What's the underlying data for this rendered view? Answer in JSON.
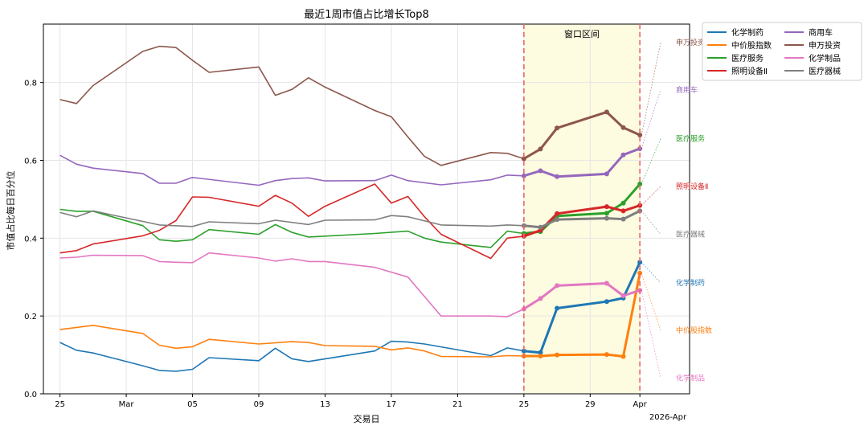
{
  "chart_data": {
    "type": "line",
    "title": "最近1周市值占比增长Top8",
    "xlabel": "交易日",
    "ylabel": "市值占比每日百分位",
    "x_axis_year_label": "2026-Apr",
    "ylim": [
      0,
      0.95
    ],
    "yticks": [
      0.0,
      0.2,
      0.4,
      0.6,
      0.8
    ],
    "ytick_labels": [
      "0.0",
      "0.2",
      "0.4",
      "0.6",
      "0.8"
    ],
    "xlim": [
      "2026-02-24",
      "2026-04-04"
    ],
    "xticks": [
      "2026-02-25",
      "2026-03-01",
      "2026-03-05",
      "2026-03-09",
      "2026-03-13",
      "2026-03-17",
      "2026-03-21",
      "2026-03-25",
      "2026-03-29",
      "2026-04-01"
    ],
    "xtick_labels": [
      "25",
      "Mar",
      "05",
      "09",
      "13",
      "17",
      "21",
      "25",
      "29",
      "Apr"
    ],
    "grid": true,
    "legend_position": "outside top-right",
    "window": {
      "label": "窗口区间",
      "start": "2026-03-25",
      "end": "2026-04-01",
      "fill": "#fdfbe0",
      "line_color": "#ee6666"
    },
    "series": [
      {
        "name": "化学制药",
        "color": "#1f77b4",
        "label_value": 0.285,
        "points": [
          [
            "2026-02-25",
            0.132
          ],
          [
            "2026-02-26",
            0.112
          ],
          [
            "2026-02-27",
            0.105
          ],
          [
            "2026-03-02",
            0.072
          ],
          [
            "2026-03-03",
            0.06
          ],
          [
            "2026-03-04",
            0.058
          ],
          [
            "2026-03-05",
            0.063
          ],
          [
            "2026-03-06",
            0.093
          ],
          [
            "2026-03-09",
            0.085
          ],
          [
            "2026-03-10",
            0.117
          ],
          [
            "2026-03-11",
            0.09
          ],
          [
            "2026-03-12",
            0.083
          ],
          [
            "2026-03-16",
            0.11
          ],
          [
            "2026-03-17",
            0.135
          ],
          [
            "2026-03-18",
            0.133
          ],
          [
            "2026-03-19",
            0.128
          ],
          [
            "2026-03-23",
            0.098
          ],
          [
            "2026-03-24",
            0.118
          ],
          [
            "2026-03-25",
            0.11
          ],
          [
            "2026-03-26",
            0.106
          ],
          [
            "2026-03-27",
            0.22
          ],
          [
            "2026-03-30",
            0.237
          ],
          [
            "2026-03-31",
            0.246
          ],
          [
            "2026-04-01",
            0.338
          ]
        ]
      },
      {
        "name": "中价股指数",
        "color": "#ff7f0e",
        "label_value": 0.163,
        "points": [
          [
            "2026-02-25",
            0.165
          ],
          [
            "2026-02-27",
            0.176
          ],
          [
            "2026-03-02",
            0.155
          ],
          [
            "2026-03-03",
            0.125
          ],
          [
            "2026-03-04",
            0.117
          ],
          [
            "2026-03-05",
            0.121
          ],
          [
            "2026-03-06",
            0.14
          ],
          [
            "2026-03-09",
            0.128
          ],
          [
            "2026-03-11",
            0.134
          ],
          [
            "2026-03-12",
            0.132
          ],
          [
            "2026-03-13",
            0.124
          ],
          [
            "2026-03-16",
            0.122
          ],
          [
            "2026-03-17",
            0.113
          ],
          [
            "2026-03-18",
            0.118
          ],
          [
            "2026-03-19",
            0.11
          ],
          [
            "2026-03-20",
            0.096
          ],
          [
            "2026-03-23",
            0.095
          ],
          [
            "2026-03-24",
            0.098
          ],
          [
            "2026-03-25",
            0.097
          ],
          [
            "2026-03-26",
            0.097
          ],
          [
            "2026-03-27",
            0.1
          ],
          [
            "2026-03-30",
            0.101
          ],
          [
            "2026-03-31",
            0.096
          ],
          [
            "2026-04-01",
            0.31
          ]
        ]
      },
      {
        "name": "医疗服务",
        "color": "#2ca02c",
        "label_value": 0.656,
        "points": [
          [
            "2026-02-25",
            0.474
          ],
          [
            "2026-02-26",
            0.469
          ],
          [
            "2026-02-27",
            0.469
          ],
          [
            "2026-03-02",
            0.432
          ],
          [
            "2026-03-03",
            0.396
          ],
          [
            "2026-03-04",
            0.392
          ],
          [
            "2026-03-05",
            0.396
          ],
          [
            "2026-03-06",
            0.422
          ],
          [
            "2026-03-09",
            0.41
          ],
          [
            "2026-03-10",
            0.435
          ],
          [
            "2026-03-11",
            0.415
          ],
          [
            "2026-03-12",
            0.403
          ],
          [
            "2026-03-16",
            0.412
          ],
          [
            "2026-03-18",
            0.418
          ],
          [
            "2026-03-19",
            0.4
          ],
          [
            "2026-03-20",
            0.39
          ],
          [
            "2026-03-23",
            0.376
          ],
          [
            "2026-03-24",
            0.418
          ],
          [
            "2026-03-25",
            0.412
          ],
          [
            "2026-03-26",
            0.417
          ],
          [
            "2026-03-27",
            0.457
          ],
          [
            "2026-03-30",
            0.464
          ],
          [
            "2026-03-31",
            0.49
          ],
          [
            "2026-04-01",
            0.539
          ]
        ]
      },
      {
        "name": "照明设备Ⅱ",
        "color": "#d62728",
        "label_value": 0.533,
        "points": [
          [
            "2026-02-25",
            0.362
          ],
          [
            "2026-02-26",
            0.368
          ],
          [
            "2026-02-27",
            0.385
          ],
          [
            "2026-03-02",
            0.406
          ],
          [
            "2026-03-03",
            0.42
          ],
          [
            "2026-03-04",
            0.445
          ],
          [
            "2026-03-05",
            0.506
          ],
          [
            "2026-03-06",
            0.505
          ],
          [
            "2026-03-09",
            0.482
          ],
          [
            "2026-03-10",
            0.51
          ],
          [
            "2026-03-11",
            0.49
          ],
          [
            "2026-03-12",
            0.456
          ],
          [
            "2026-03-13",
            0.482
          ],
          [
            "2026-03-16",
            0.539
          ],
          [
            "2026-03-17",
            0.49
          ],
          [
            "2026-03-18",
            0.507
          ],
          [
            "2026-03-19",
            0.455
          ],
          [
            "2026-03-20",
            0.41
          ],
          [
            "2026-03-23",
            0.348
          ],
          [
            "2026-03-24",
            0.4
          ],
          [
            "2026-03-25",
            0.405
          ],
          [
            "2026-03-26",
            0.42
          ],
          [
            "2026-03-27",
            0.463
          ],
          [
            "2026-03-30",
            0.481
          ],
          [
            "2026-03-31",
            0.47
          ],
          [
            "2026-04-01",
            0.484
          ]
        ]
      },
      {
        "name": "商用车",
        "color": "#9467bd",
        "label_value": 0.781,
        "points": [
          [
            "2026-02-25",
            0.613
          ],
          [
            "2026-02-26",
            0.59
          ],
          [
            "2026-02-27",
            0.58
          ],
          [
            "2026-03-02",
            0.566
          ],
          [
            "2026-03-03",
            0.541
          ],
          [
            "2026-03-04",
            0.541
          ],
          [
            "2026-03-05",
            0.556
          ],
          [
            "2026-03-09",
            0.536
          ],
          [
            "2026-03-10",
            0.548
          ],
          [
            "2026-03-11",
            0.553
          ],
          [
            "2026-03-12",
            0.555
          ],
          [
            "2026-03-13",
            0.547
          ],
          [
            "2026-03-16",
            0.548
          ],
          [
            "2026-03-17",
            0.562
          ],
          [
            "2026-03-18",
            0.548
          ],
          [
            "2026-03-20",
            0.537
          ],
          [
            "2026-03-23",
            0.55
          ],
          [
            "2026-03-24",
            0.562
          ],
          [
            "2026-03-25",
            0.56
          ],
          [
            "2026-03-26",
            0.573
          ],
          [
            "2026-03-27",
            0.558
          ],
          [
            "2026-03-30",
            0.565
          ],
          [
            "2026-03-31",
            0.614
          ],
          [
            "2026-04-01",
            0.63
          ]
        ]
      },
      {
        "name": "申万投资",
        "color": "#8c564b",
        "label_value": 0.902,
        "points": [
          [
            "2026-02-25",
            0.756
          ],
          [
            "2026-02-26",
            0.746
          ],
          [
            "2026-02-27",
            0.792
          ],
          [
            "2026-03-02",
            0.88
          ],
          [
            "2026-03-03",
            0.893
          ],
          [
            "2026-03-04",
            0.89
          ],
          [
            "2026-03-05",
            0.857
          ],
          [
            "2026-03-06",
            0.826
          ],
          [
            "2026-03-09",
            0.84
          ],
          [
            "2026-03-10",
            0.767
          ],
          [
            "2026-03-11",
            0.782
          ],
          [
            "2026-03-12",
            0.812
          ],
          [
            "2026-03-13",
            0.788
          ],
          [
            "2026-03-16",
            0.728
          ],
          [
            "2026-03-17",
            0.712
          ],
          [
            "2026-03-18",
            0.66
          ],
          [
            "2026-03-19",
            0.61
          ],
          [
            "2026-03-20",
            0.587
          ],
          [
            "2026-03-23",
            0.62
          ],
          [
            "2026-03-24",
            0.618
          ],
          [
            "2026-03-25",
            0.604
          ],
          [
            "2026-03-26",
            0.629
          ],
          [
            "2026-03-27",
            0.683
          ],
          [
            "2026-03-30",
            0.724
          ],
          [
            "2026-03-31",
            0.684
          ],
          [
            "2026-04-01",
            0.665
          ]
        ]
      },
      {
        "name": "化学制品",
        "color": "#e377c2",
        "label_value": 0.04,
        "points": [
          [
            "2026-02-25",
            0.349
          ],
          [
            "2026-02-26",
            0.351
          ],
          [
            "2026-02-27",
            0.356
          ],
          [
            "2026-03-02",
            0.355
          ],
          [
            "2026-03-03",
            0.34
          ],
          [
            "2026-03-04",
            0.338
          ],
          [
            "2026-03-05",
            0.337
          ],
          [
            "2026-03-06",
            0.362
          ],
          [
            "2026-03-09",
            0.349
          ],
          [
            "2026-03-10",
            0.341
          ],
          [
            "2026-03-11",
            0.347
          ],
          [
            "2026-03-12",
            0.34
          ],
          [
            "2026-03-13",
            0.34
          ],
          [
            "2026-03-16",
            0.325
          ],
          [
            "2026-03-18",
            0.3
          ],
          [
            "2026-03-20",
            0.2
          ],
          [
            "2026-03-23",
            0.2
          ],
          [
            "2026-03-24",
            0.198
          ],
          [
            "2026-03-25",
            0.218
          ],
          [
            "2026-03-26",
            0.245
          ],
          [
            "2026-03-27",
            0.278
          ],
          [
            "2026-03-30",
            0.284
          ],
          [
            "2026-03-31",
            0.252
          ],
          [
            "2026-04-01",
            0.266
          ]
        ]
      },
      {
        "name": "医疗器械",
        "color": "#7f7f7f",
        "label_value": 0.41,
        "points": [
          [
            "2026-02-25",
            0.466
          ],
          [
            "2026-02-26",
            0.455
          ],
          [
            "2026-02-27",
            0.47
          ],
          [
            "2026-03-02",
            0.443
          ],
          [
            "2026-03-03",
            0.434
          ],
          [
            "2026-03-05",
            0.43
          ],
          [
            "2026-03-06",
            0.442
          ],
          [
            "2026-03-09",
            0.437
          ],
          [
            "2026-03-10",
            0.446
          ],
          [
            "2026-03-12",
            0.435
          ],
          [
            "2026-03-13",
            0.446
          ],
          [
            "2026-03-16",
            0.447
          ],
          [
            "2026-03-17",
            0.458
          ],
          [
            "2026-03-18",
            0.455
          ],
          [
            "2026-03-20",
            0.434
          ],
          [
            "2026-03-23",
            0.431
          ],
          [
            "2026-03-24",
            0.434
          ],
          [
            "2026-03-25",
            0.432
          ],
          [
            "2026-03-26",
            0.428
          ],
          [
            "2026-03-27",
            0.448
          ],
          [
            "2026-03-30",
            0.451
          ],
          [
            "2026-03-31",
            0.449
          ],
          [
            "2026-04-01",
            0.47
          ]
        ]
      }
    ],
    "legend_order": [
      "化学制药",
      "中价股指数",
      "医疗服务",
      "照明设备Ⅱ",
      "商用车",
      "申万投资",
      "化学制品",
      "医疗器械"
    ]
  }
}
